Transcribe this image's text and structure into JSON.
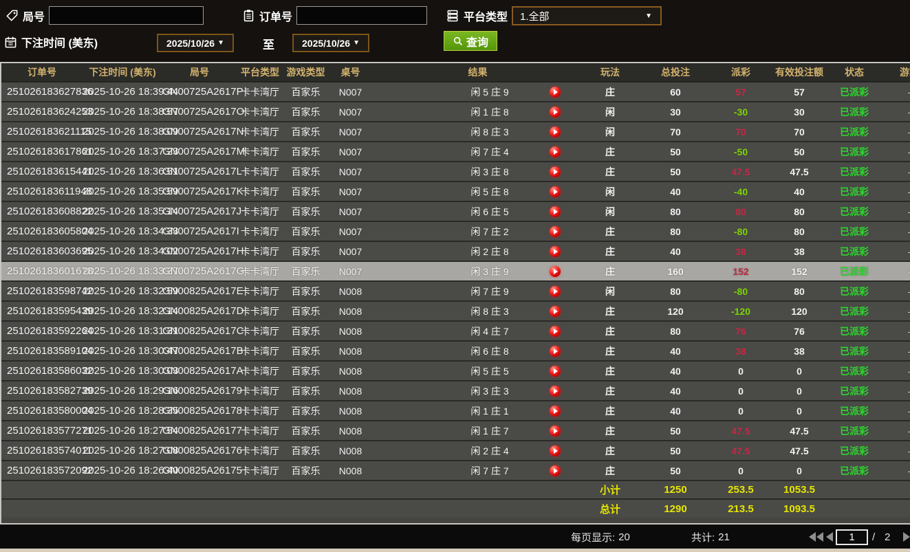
{
  "filters": {
    "game_no_label": "局号",
    "game_no_value": "",
    "order_no_label": "订单号",
    "order_no_value": "",
    "platform_type_label": "平台类型",
    "platform_type_value": "1.全部",
    "bet_time_label": "下注时间 (美东)",
    "date_from": "2025/10/26",
    "date_to": "2025/10/26",
    "to_label": "至",
    "search_label": "查询",
    "caret": "▼"
  },
  "icons": {
    "game_no": "tag-icon",
    "order_no": "clipboard-icon",
    "platform_type": "server-stack-icon",
    "bet_time": "calendar-icon",
    "search": "magnifier-icon",
    "result_row": "play-video-icon",
    "pagination": [
      "first-page-icon",
      "prev-page-icon",
      "next-page-icon"
    ]
  },
  "table": {
    "headers": [
      "订单号",
      "下注时间 (美东)",
      "局号",
      "平台类型",
      "游戏类型",
      "桌号",
      "结果",
      "玩法",
      "总投注",
      "派彩",
      "有效投注额",
      "状态",
      "游戏"
    ],
    "selected_index": 9,
    "rows": [
      {
        "order": "251026183627836",
        "time": "2025-10-26 18:39:44",
        "game": "GN00725A2617P",
        "platform": "卡卡湾厅",
        "type": "百家乐",
        "table_no": "N007",
        "result": "闲 5 庄 9",
        "play": "庄",
        "bet": "60",
        "payout": "57",
        "payout_class": "win",
        "valid": "57",
        "status": "已派彩",
        "extra": "-"
      },
      {
        "order": "251026183624253",
        "time": "2025-10-26 18:38:57",
        "game": "GN00725A2617O",
        "platform": "卡卡湾厅",
        "type": "百家乐",
        "table_no": "N007",
        "result": "闲 1 庄 8",
        "play": "闲",
        "bet": "30",
        "payout": "-30",
        "payout_class": "loss",
        "valid": "30",
        "status": "已派彩",
        "extra": "-"
      },
      {
        "order": "251026183621115",
        "time": "2025-10-26 18:38:09",
        "game": "GN00725A2617N",
        "platform": "卡卡湾厅",
        "type": "百家乐",
        "table_no": "N007",
        "result": "闲 8 庄 3",
        "play": "闲",
        "bet": "70",
        "payout": "70",
        "payout_class": "win",
        "valid": "70",
        "status": "已派彩",
        "extra": "-"
      },
      {
        "order": "251026183617861",
        "time": "2025-10-26 18:37:23",
        "game": "GN00725A2617M",
        "platform": "卡卡湾厅",
        "type": "百家乐",
        "table_no": "N007",
        "result": "闲 7 庄 4",
        "play": "庄",
        "bet": "50",
        "payout": "-50",
        "payout_class": "loss",
        "valid": "50",
        "status": "已派彩",
        "extra": "-"
      },
      {
        "order": "251026183615441",
        "time": "2025-10-26 18:36:51",
        "game": "GN00725A2617L",
        "platform": "卡卡湾厅",
        "type": "百家乐",
        "table_no": "N007",
        "result": "闲 3 庄 8",
        "play": "庄",
        "bet": "50",
        "payout": "47.5",
        "payout_class": "win",
        "valid": "47.5",
        "status": "已派彩",
        "extra": "-"
      },
      {
        "order": "251026183611948",
        "time": "2025-10-26 18:35:59",
        "game": "GN00725A2617K",
        "platform": "卡卡湾厅",
        "type": "百家乐",
        "table_no": "N007",
        "result": "闲 5 庄 8",
        "play": "闲",
        "bet": "40",
        "payout": "-40",
        "payout_class": "loss",
        "valid": "40",
        "status": "已派彩",
        "extra": "-"
      },
      {
        "order": "251026183608822",
        "time": "2025-10-26 18:35:14",
        "game": "GN00725A2617J",
        "platform": "卡卡湾厅",
        "type": "百家乐",
        "table_no": "N007",
        "result": "闲 6 庄 5",
        "play": "闲",
        "bet": "80",
        "payout": "80",
        "payout_class": "win",
        "valid": "80",
        "status": "已派彩",
        "extra": "-"
      },
      {
        "order": "251026183605804",
        "time": "2025-10-26 18:34:33",
        "game": "GN00725A2617I",
        "platform": "卡卡湾厅",
        "type": "百家乐",
        "table_no": "N007",
        "result": "闲 7 庄 2",
        "play": "庄",
        "bet": "80",
        "payout": "-80",
        "payout_class": "loss",
        "valid": "80",
        "status": "已派彩",
        "extra": "-"
      },
      {
        "order": "251026183603695",
        "time": "2025-10-26 18:34:02",
        "game": "GN00725A2617H",
        "platform": "卡卡湾厅",
        "type": "百家乐",
        "table_no": "N007",
        "result": "闲 2 庄 8",
        "play": "庄",
        "bet": "40",
        "payout": "38",
        "payout_class": "win",
        "valid": "38",
        "status": "已派彩",
        "extra": "-"
      },
      {
        "order": "251026183601678",
        "time": "2025-10-26 18:33:37",
        "game": "GN00725A2617G",
        "platform": "卡卡湾厅",
        "type": "百家乐",
        "table_no": "N007",
        "result": "闲 3 庄 9",
        "play": "庄",
        "bet": "160",
        "payout": "152",
        "payout_class": "win",
        "valid": "152",
        "status": "已派彩",
        "extra": "-"
      },
      {
        "order": "251026183598742",
        "time": "2025-10-26 18:32:59",
        "game": "GN00825A2617E",
        "platform": "卡卡湾厅",
        "type": "百家乐",
        "table_no": "N008",
        "result": "闲 7 庄 9",
        "play": "闲",
        "bet": "80",
        "payout": "-80",
        "payout_class": "loss",
        "valid": "80",
        "status": "已派彩",
        "extra": "-"
      },
      {
        "order": "251026183595439",
        "time": "2025-10-26 18:32:14",
        "game": "GN00825A2617D",
        "platform": "卡卡湾厅",
        "type": "百家乐",
        "table_no": "N008",
        "result": "闲 8 庄 3",
        "play": "庄",
        "bet": "120",
        "payout": "-120",
        "payout_class": "loss",
        "valid": "120",
        "status": "已派彩",
        "extra": "-"
      },
      {
        "order": "251026183592264",
        "time": "2025-10-26 18:31:31",
        "game": "GN00825A2617C",
        "platform": "卡卡湾厅",
        "type": "百家乐",
        "table_no": "N008",
        "result": "闲 4 庄 7",
        "play": "庄",
        "bet": "80",
        "payout": "76",
        "payout_class": "win",
        "valid": "76",
        "status": "已派彩",
        "extra": "-"
      },
      {
        "order": "251026183589104",
        "time": "2025-10-26 18:30:47",
        "game": "GN00825A2617B",
        "platform": "卡卡湾厅",
        "type": "百家乐",
        "table_no": "N008",
        "result": "闲 6 庄 8",
        "play": "庄",
        "bet": "40",
        "payout": "38",
        "payout_class": "win",
        "valid": "38",
        "status": "已派彩",
        "extra": "-"
      },
      {
        "order": "251026183586032",
        "time": "2025-10-26 18:30:03",
        "game": "GN00825A2617A",
        "platform": "卡卡湾厅",
        "type": "百家乐",
        "table_no": "N008",
        "result": "闲 5 庄 5",
        "play": "庄",
        "bet": "40",
        "payout": "0",
        "payout_class": "zero",
        "valid": "0",
        "status": "已派彩",
        "extra": "-"
      },
      {
        "order": "251026183582739",
        "time": "2025-10-26 18:29:16",
        "game": "GN00825A26179",
        "platform": "卡卡湾厅",
        "type": "百家乐",
        "table_no": "N008",
        "result": "闲 3 庄 3",
        "play": "庄",
        "bet": "40",
        "payout": "0",
        "payout_class": "zero",
        "valid": "0",
        "status": "已派彩",
        "extra": "-"
      },
      {
        "order": "251026183580004",
        "time": "2025-10-26 18:28:35",
        "game": "GN00825A26178",
        "platform": "卡卡湾厅",
        "type": "百家乐",
        "table_no": "N008",
        "result": "闲 1 庄 1",
        "play": "庄",
        "bet": "40",
        "payout": "0",
        "payout_class": "zero",
        "valid": "0",
        "status": "已派彩",
        "extra": "-"
      },
      {
        "order": "251026183577271",
        "time": "2025-10-26 18:27:54",
        "game": "GN00825A26177",
        "platform": "卡卡湾厅",
        "type": "百家乐",
        "table_no": "N008",
        "result": "闲 1 庄 7",
        "play": "庄",
        "bet": "50",
        "payout": "47.5",
        "payout_class": "win",
        "valid": "47.5",
        "status": "已派彩",
        "extra": "-"
      },
      {
        "order": "251026183574011",
        "time": "2025-10-26 18:27:08",
        "game": "GN00825A26176",
        "platform": "卡卡湾厅",
        "type": "百家乐",
        "table_no": "N008",
        "result": "闲 2 庄 4",
        "play": "庄",
        "bet": "50",
        "payout": "47.5",
        "payout_class": "win",
        "valid": "47.5",
        "status": "已派彩",
        "extra": "-"
      },
      {
        "order": "251026183572092",
        "time": "2025-10-26 18:26:40",
        "game": "GN00825A26175",
        "platform": "卡卡湾厅",
        "type": "百家乐",
        "table_no": "N008",
        "result": "闲 7 庄 7",
        "play": "庄",
        "bet": "50",
        "payout": "0",
        "payout_class": "zero",
        "valid": "0",
        "status": "已派彩",
        "extra": "-"
      }
    ],
    "subtotal": {
      "label": "小计",
      "bet": "1250",
      "payout": "253.5",
      "valid": "1053.5"
    },
    "total": {
      "label": "总计",
      "bet": "1290",
      "payout": "213.5",
      "valid": "1093.5"
    }
  },
  "pagination": {
    "per_page_label": "每页显示:",
    "per_page_value": "20",
    "total_label": "共计:",
    "total_value": "21",
    "current_page": "1",
    "page_separator": "/",
    "total_pages": "2"
  },
  "colors": {
    "payout_win": "#c32843",
    "payout_loss": "#7ad400",
    "status_green": "#2ed52e",
    "totals_yellow": "#e6e600",
    "header_gold": "#d2b26e",
    "button_green": "#68a812",
    "border_brown": "#8a5a20",
    "selected_row": "#a9a7a3",
    "strip_tan": "#d9cdbb"
  }
}
